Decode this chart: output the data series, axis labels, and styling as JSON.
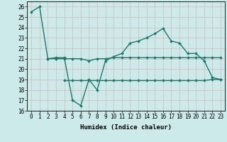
{
  "line1_x": [
    0,
    1,
    2,
    3,
    4,
    5,
    6,
    7,
    8,
    9,
    10,
    11,
    12,
    13,
    14,
    15,
    16,
    17,
    18,
    19,
    20,
    21,
    22,
    23
  ],
  "line1_y": [
    25.5,
    26.0,
    21.0,
    21.1,
    21.1,
    17.0,
    16.5,
    19.0,
    18.0,
    20.8,
    21.2,
    21.5,
    22.5,
    22.7,
    23.0,
    23.4,
    23.9,
    22.7,
    22.5,
    21.5,
    21.5,
    20.8,
    19.2,
    19.0
  ],
  "line2_x": [
    2,
    3,
    4,
    5,
    6,
    7,
    8,
    9,
    10,
    11,
    12,
    13,
    14,
    15,
    16,
    17,
    18,
    19,
    20,
    21,
    22,
    23
  ],
  "line2_y": [
    21.0,
    21.0,
    21.0,
    21.0,
    21.0,
    20.8,
    21.0,
    21.0,
    21.1,
    21.1,
    21.1,
    21.1,
    21.1,
    21.1,
    21.1,
    21.1,
    21.1,
    21.1,
    21.1,
    21.1,
    21.1,
    21.1
  ],
  "line3_x": [
    4,
    5,
    6,
    7,
    8,
    9,
    10,
    11,
    12,
    13,
    14,
    15,
    16,
    17,
    18,
    19,
    20,
    21,
    22,
    23
  ],
  "line3_y": [
    18.9,
    18.9,
    18.9,
    18.9,
    18.9,
    18.9,
    18.9,
    18.9,
    18.9,
    18.9,
    18.9,
    18.9,
    18.9,
    18.9,
    18.9,
    18.9,
    18.9,
    18.9,
    19.0,
    19.0
  ],
  "line_color": "#1a7a6e",
  "bg_color": "#cceaea",
  "grid_color": "#c0d8d8",
  "xlabel": "Humidex (Indice chaleur)",
  "ylim": [
    16,
    26.5
  ],
  "xlim": [
    -0.5,
    23.5
  ],
  "yticks": [
    16,
    17,
    18,
    19,
    20,
    21,
    22,
    23,
    24,
    25,
    26
  ],
  "xticks": [
    0,
    1,
    2,
    3,
    4,
    5,
    6,
    7,
    8,
    9,
    10,
    11,
    12,
    13,
    14,
    15,
    16,
    17,
    18,
    19,
    20,
    21,
    22,
    23
  ],
  "marker_size": 2.0,
  "line_width": 1.0,
  "tick_fontsize": 5.5,
  "xlabel_fontsize": 6.5
}
